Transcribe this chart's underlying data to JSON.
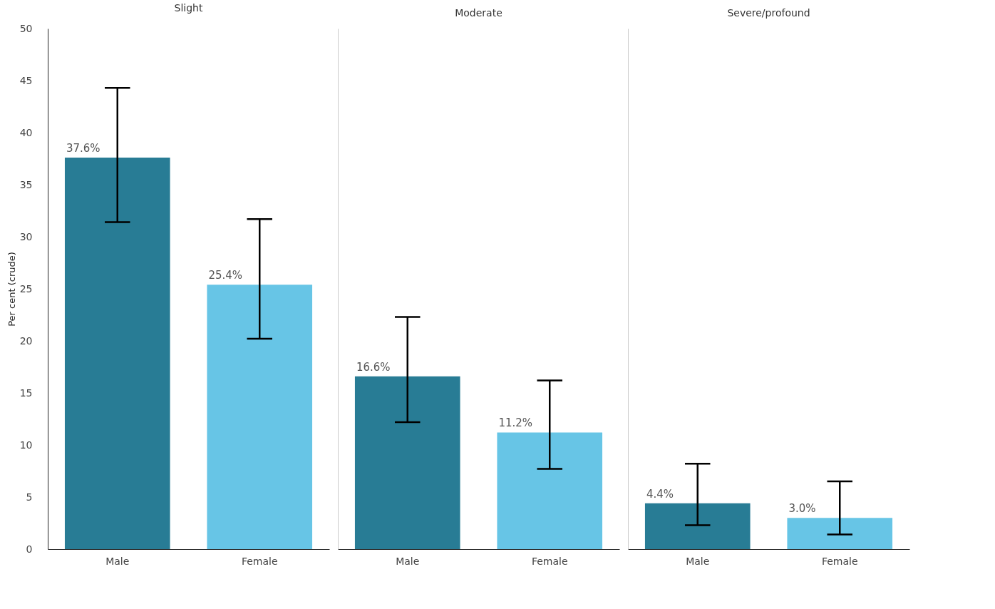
{
  "chart_data": [
    {
      "type": "bar",
      "title": "Slight",
      "ylabel": "Per cent (crude)",
      "categories": [
        "Male",
        "Female"
      ],
      "values": [
        37.6,
        25.4
      ],
      "colors": [
        "#287c95",
        "#67c5e6"
      ],
      "errors": [
        [
          31.4,
          44.3
        ],
        [
          20.2,
          31.7
        ]
      ],
      "value_labels": [
        "37.6%",
        "25.4%"
      ],
      "ylim": [
        0,
        50
      ],
      "yticks": [
        0,
        5,
        10,
        15,
        20,
        25,
        30,
        35,
        40,
        45,
        50
      ],
      "grid": false,
      "legend": false
    },
    {
      "type": "bar",
      "title": "Moderate",
      "categories": [
        "Male",
        "Female"
      ],
      "values": [
        16.6,
        11.2
      ],
      "colors": [
        "#287c95",
        "#67c5e6"
      ],
      "errors": [
        [
          12.2,
          22.3
        ],
        [
          7.7,
          16.2
        ]
      ],
      "value_labels": [
        "16.6%",
        "11.2%"
      ],
      "ylim": [
        0,
        50
      ],
      "yticks": [
        0,
        5,
        10,
        15,
        20,
        25,
        30,
        35,
        40,
        45,
        50
      ],
      "tick_labels": "x",
      "grid": false,
      "legend": false
    },
    {
      "type": "bar",
      "title": "Severe/profound",
      "categories": [
        "Male",
        "Female"
      ],
      "values": [
        4.4,
        3.0
      ],
      "colors": [
        "#287c95",
        "#67c5e6"
      ],
      "errors": [
        [
          2.3,
          8.2
        ],
        [
          1.4,
          6.5
        ]
      ],
      "value_labels": [
        "4.4%",
        "3.0%"
      ],
      "ylim": [
        0,
        50
      ],
      "yticks": [
        0,
        5,
        10,
        15,
        20,
        25,
        30,
        35,
        40,
        45,
        50
      ],
      "tick_labels": "x",
      "grid": false,
      "legend": false
    }
  ]
}
